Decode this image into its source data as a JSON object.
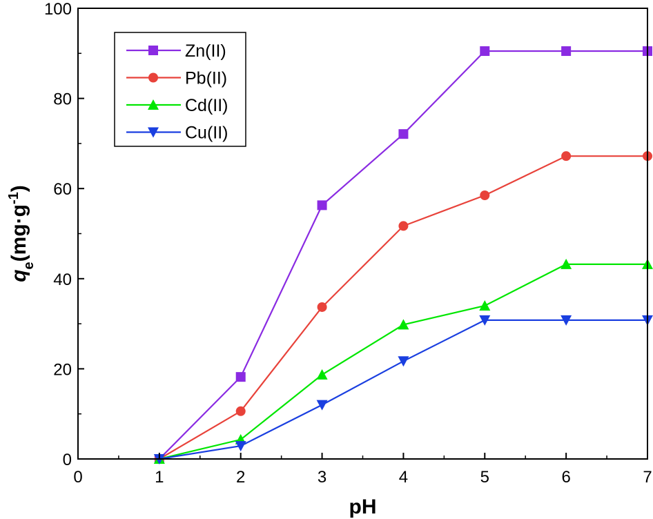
{
  "chart_data": {
    "type": "line",
    "title": "",
    "xlabel": "pH",
    "ylabel": {
      "symbol": "q",
      "subscript": "e",
      "unit_open": "(mg·g",
      "superscript": "-1",
      "unit_close": ")"
    },
    "xlim": [
      0,
      7
    ],
    "ylim": [
      0,
      100
    ],
    "x_ticks": [
      0,
      1,
      2,
      3,
      4,
      5,
      6,
      7
    ],
    "y_ticks": [
      0,
      20,
      40,
      60,
      80,
      100
    ],
    "grid": false,
    "legend_placement": "top-left",
    "x": [
      1,
      2,
      3,
      4,
      5,
      6,
      7
    ],
    "series": [
      {
        "name": "Zn(II)",
        "color": "#8a2be2",
        "marker": "square",
        "values": [
          0,
          18.2,
          56.3,
          72.1,
          90.5,
          90.5,
          90.5
        ]
      },
      {
        "name": "Pb(II)",
        "color": "#e8423a",
        "marker": "circle",
        "values": [
          0,
          10.6,
          33.7,
          51.7,
          58.5,
          67.2,
          67.2
        ]
      },
      {
        "name": "Cd(II)",
        "color": "#00e600",
        "marker": "triangle-up",
        "values": [
          0,
          4.3,
          18.7,
          29.8,
          34.0,
          43.2,
          43.2
        ]
      },
      {
        "name": "Cu(II)",
        "color": "#1a3fe0",
        "marker": "triangle-down",
        "values": [
          0,
          2.9,
          12.0,
          21.7,
          30.8,
          30.8,
          30.8
        ]
      }
    ]
  }
}
